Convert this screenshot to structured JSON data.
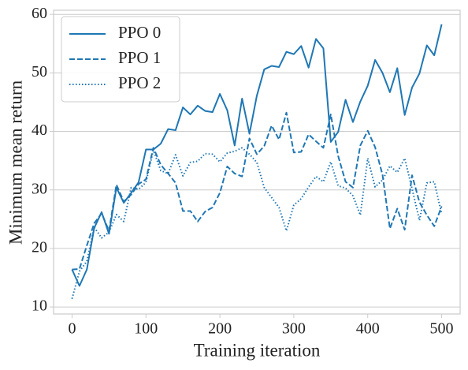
{
  "chart_data": {
    "type": "line",
    "xlabel": "Training iteration",
    "ylabel": "Minimum mean return",
    "x": [
      0,
      10,
      20,
      30,
      40,
      50,
      60,
      70,
      80,
      90,
      100,
      110,
      120,
      130,
      140,
      150,
      160,
      170,
      180,
      190,
      200,
      210,
      220,
      230,
      240,
      250,
      260,
      270,
      280,
      290,
      300,
      310,
      320,
      330,
      340,
      350,
      360,
      370,
      380,
      390,
      400,
      410,
      420,
      430,
      440,
      450,
      460,
      470,
      480,
      490,
      500
    ],
    "series": [
      {
        "name": "PPO 0",
        "color": "#1f77b4",
        "dash": "solid",
        "values": [
          16.4,
          13.6,
          16.4,
          23.5,
          26.2,
          22.5,
          30.4,
          27.8,
          29.5,
          31.3,
          36.9,
          36.9,
          37.9,
          40.4,
          40.2,
          44.1,
          42.9,
          44.4,
          43.5,
          43.3,
          46.4,
          43.6,
          37.6,
          45.6,
          39.6,
          46.1,
          50.6,
          51.2,
          51.0,
          53.6,
          53.2,
          54.6,
          50.9,
          55.8,
          54.2,
          38.2,
          39.9,
          45.4,
          41.6,
          45.1,
          47.8,
          52.2,
          50.0,
          46.7,
          50.8,
          42.8,
          47.5,
          49.9,
          54.7,
          53.0,
          58.3
        ]
      },
      {
        "name": "PPO 1",
        "color": "#1f77b4",
        "dash": "dashed",
        "values": [
          16.4,
          16.5,
          20.5,
          24.3,
          26.0,
          23.0,
          30.9,
          28.0,
          29.2,
          31.0,
          31.8,
          37.2,
          34.3,
          32.8,
          31.2,
          26.4,
          26.4,
          24.6,
          26.3,
          27.0,
          29.5,
          34.0,
          32.8,
          32.3,
          38.8,
          36.1,
          37.5,
          41.0,
          38.6,
          43.2,
          36.4,
          36.5,
          39.5,
          38.3,
          37.2,
          42.9,
          35.8,
          31.4,
          30.4,
          37.6,
          40.1,
          37.3,
          32.6,
          23.4,
          26.8,
          23.2,
          32.5,
          27.9,
          25.7,
          23.8,
          27.2
        ]
      },
      {
        "name": "PPO 2",
        "color": "#1f77b4",
        "dash": "dotted",
        "values": [
          11.4,
          16.1,
          17.8,
          23.6,
          21.8,
          22.8,
          25.8,
          24.6,
          30.4,
          30.1,
          31.3,
          36.8,
          33.3,
          32.8,
          36.0,
          32.4,
          34.7,
          34.9,
          36.2,
          36.1,
          34.8,
          36.3,
          36.6,
          37.2,
          36.1,
          34.7,
          30.4,
          28.7,
          27.0,
          23.0,
          27.4,
          28.5,
          30.5,
          32.3,
          31.4,
          34.8,
          30.7,
          30.3,
          29.0,
          25.7,
          35.4,
          30.5,
          31.7,
          34.1,
          33.0,
          35.4,
          30.2,
          24.8,
          31.2,
          31.4,
          25.9
        ]
      }
    ],
    "xlim": [
      -25,
      525
    ],
    "ylim": [
      8.8,
      60.7
    ],
    "xticks": [
      0,
      100,
      200,
      300,
      400,
      500
    ],
    "yticks": [
      10,
      20,
      30,
      40,
      50,
      60
    ],
    "grid": "y",
    "legend": "upper left"
  }
}
